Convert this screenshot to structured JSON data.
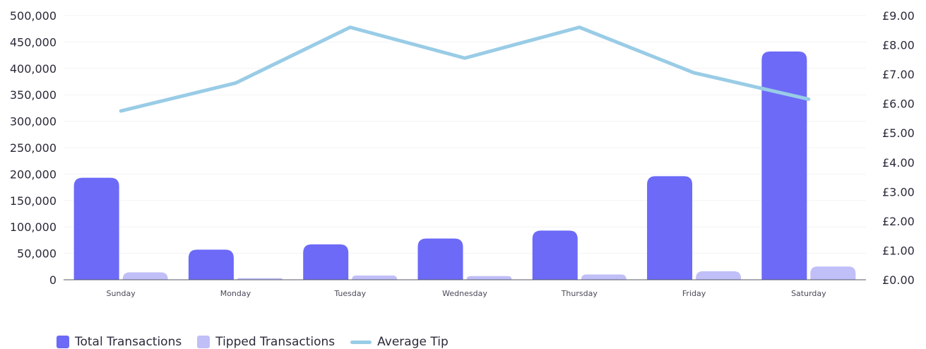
{
  "chart_data": {
    "type": "bar",
    "categories": [
      "Sunday",
      "Monday",
      "Tuesday",
      "Wednesday",
      "Thursday",
      "Friday",
      "Saturday"
    ],
    "series": [
      {
        "name": "Total Transactions",
        "type": "bar",
        "axis": "left",
        "color": "#6c6af7",
        "values": [
          193000,
          57000,
          67000,
          78000,
          93000,
          196000,
          432000
        ]
      },
      {
        "name": "Tipped Transactions",
        "type": "bar",
        "axis": "left",
        "color": "#c1bff8",
        "values": [
          14000,
          3000,
          8000,
          7000,
          10000,
          16000,
          25000
        ]
      },
      {
        "name": "Average Tip",
        "type": "line",
        "axis": "right",
        "color": "#99cce6",
        "values": [
          5.75,
          6.7,
          8.6,
          7.55,
          8.6,
          7.05,
          6.15
        ]
      }
    ],
    "left_axis": {
      "ylim": [
        0,
        500000
      ],
      "ticks": [
        "0",
        "50,000",
        "100,000",
        "150,000",
        "200,000",
        "250,000",
        "300,000",
        "350,000",
        "400,000",
        "450,000",
        "500,000"
      ]
    },
    "right_axis": {
      "ylim": [
        0,
        9
      ],
      "ticks": [
        "£0.00",
        "£1.00",
        "£2.00",
        "£3.00",
        "£4.00",
        "£5.00",
        "£6.00",
        "£7.00",
        "£8.00",
        "£9.00"
      ]
    },
    "grid": true,
    "legend_position": "bottom-left"
  }
}
